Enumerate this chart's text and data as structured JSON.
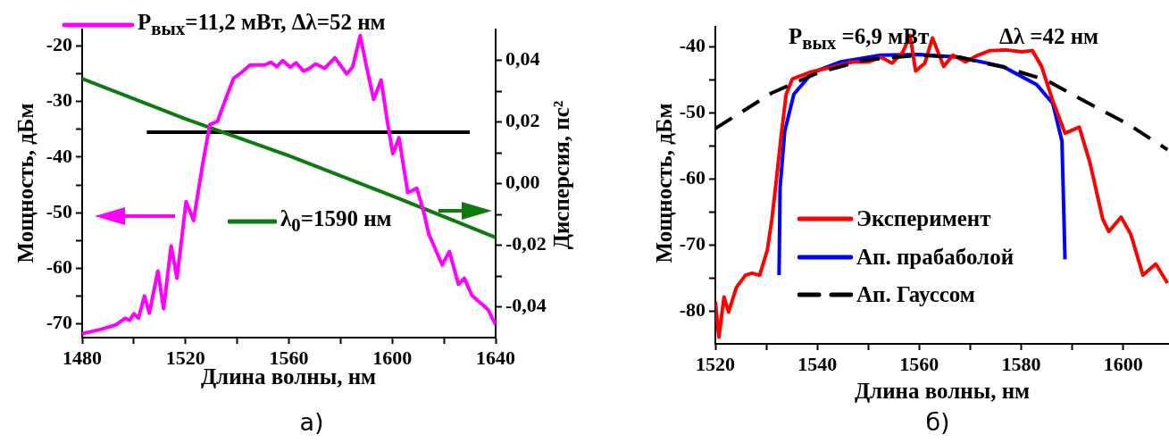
{
  "chart_data": [
    {
      "type": "line",
      "xlabel": "Длина волны, нм",
      "ylabel": "Мощность, дБм",
      "y2label": "Дисперсия, пс²",
      "xlim": [
        1480,
        1640
      ],
      "xticks": [
        1480,
        {
          "value": 1500,
          "label": null
        },
        1520,
        {
          "value": 1540,
          "label": null
        },
        1560,
        {
          "value": 1580,
          "label": null
        },
        1600,
        {
          "value": 1620,
          "label": null
        },
        1640
      ],
      "ylim": [
        -72.5,
        -17
      ],
      "yticks": [
        -70,
        {
          "value": -65,
          "label": null
        },
        -60,
        {
          "value": -55,
          "label": null
        },
        -50,
        {
          "value": -45,
          "label": null
        },
        -40,
        {
          "value": -35,
          "label": null
        },
        -30,
        {
          "value": -25,
          "label": null
        },
        -20
      ],
      "y2lim": [
        -0.05,
        0.05
      ],
      "y2ticks": [
        {
          "value": -0.04,
          "label": "-0,04"
        },
        {
          "value": -0.03,
          "label": null
        },
        {
          "value": -0.02,
          "label": "-0,02"
        },
        {
          "value": -0.01,
          "label": null
        },
        {
          "value": 0,
          "label": "0,00"
        },
        {
          "value": 0.01,
          "label": null
        },
        {
          "value": 0.02,
          "label": "0,02"
        },
        {
          "value": 0.03,
          "label": null
        },
        {
          "value": 0.04,
          "label": "0,04"
        }
      ],
      "legend": "top left",
      "grid": false,
      "series": [
        {
          "name": "P$_{вых}$=11,2 мВт, Δλ=52 нм",
          "color": "#ff00ff",
          "axis": "y",
          "x": [
            1480,
            1487.4,
            1493.1,
            1496.6,
            1498.3,
            1500,
            1501.8,
            1504.1,
            1506,
            1509.3,
            1511.5,
            1514.4,
            1516.7,
            1520.2,
            1523.1,
            1526.5,
            1529.4,
            1532.3,
            1535.7,
            1538.6,
            1541.5,
            1545,
            1550.7,
            1553,
            1555.3,
            1557.6,
            1560.5,
            1562.8,
            1565.7,
            1568,
            1570.3,
            1573.8,
            1577.8,
            1582.4,
            1584.7,
            1587.6,
            1589.9,
            1592.8,
            1595.7,
            1597.9,
            1600.2,
            1602.6,
            1606,
            1609.5,
            1612.3,
            1614.1,
            1619.3,
            1622.1,
            1625.6,
            1627.9,
            1630.8,
            1634.8,
            1637.1,
            1640
          ],
          "values": [
            -71.8,
            -71,
            -70.2,
            -69,
            -69.4,
            -68.2,
            -69,
            -65,
            -68.1,
            -60.5,
            -67.3,
            -56,
            -61.8,
            -48,
            -51.4,
            -41.6,
            -34.1,
            -33.6,
            -29.3,
            -25.8,
            -24.8,
            -23.4,
            -23.4,
            -22.9,
            -23.7,
            -22.6,
            -23.8,
            -23,
            -24.5,
            -24,
            -23.2,
            -24,
            -22.1,
            -25,
            -23.7,
            -18.1,
            -23.4,
            -29.6,
            -26.1,
            -33,
            -39.4,
            -36.5,
            -46.4,
            -45.6,
            -50.1,
            -53.8,
            -59.4,
            -57,
            -62.9,
            -61.8,
            -64.9,
            -66.5,
            -67.5,
            -70.2
          ]
        },
        {
          "name": "λ$_{0}$=1590 нм",
          "color": "#0f7a0f",
          "axis": "y2",
          "x": [
            1480,
            1520,
            1560,
            1600,
            1640
          ],
          "values": [
            0.034,
            0.021,
            0.009,
            -0.004,
            -0.0175
          ]
        },
        {
          "color": "#000000",
          "axis": "y",
          "x": [
            1505,
            1630
          ],
          "values": [
            -35.5,
            -35.5
          ]
        }
      ],
      "annotations": [
        "а)"
      ]
    },
    {
      "type": "line",
      "xlabel": "Длина волны, нм",
      "ylabel": "Мощность, дБм",
      "xlim": [
        1520,
        1609
      ],
      "xticks": [
        1520,
        {
          "value": 1530,
          "label": null
        },
        1540,
        {
          "value": 1550,
          "label": null
        },
        1560,
        {
          "value": 1570,
          "label": null
        },
        1580,
        {
          "value": 1590,
          "label": null
        },
        1600
      ],
      "ylim": [
        -85,
        -37
      ],
      "yticks": [
        -80,
        {
          "value": -75,
          "label": null
        },
        -70,
        {
          "value": -65,
          "label": null
        },
        -60,
        {
          "value": -55,
          "label": null
        },
        -50,
        {
          "value": -45,
          "label": null
        },
        -40
      ],
      "legend": "bottom left",
      "grid": false,
      "series": [
        {
          "name": "Эксперимент",
          "color": "#ff0000",
          "x": [
            1520,
            1520.7,
            1521.7,
            1522.6,
            1524.1,
            1525.9,
            1527.2,
            1528.7,
            1530.2,
            1531.1,
            1532,
            1533,
            1533.9,
            1535.1,
            1538.5,
            1543.4,
            1547,
            1550.1,
            1552.5,
            1554.7,
            1556.8,
            1558.2,
            1559.3,
            1561.1,
            1562.6,
            1564.8,
            1566.6,
            1569.1,
            1571.5,
            1573.9,
            1577,
            1580.1,
            1582.2,
            1584,
            1586.2,
            1588.6,
            1591.4,
            1593.5,
            1596,
            1597.2,
            1599.6,
            1601.5,
            1603.9,
            1606.4,
            1608.7
          ],
          "values": [
            -78.6,
            -84,
            -77.9,
            -80.2,
            -76.5,
            -74.6,
            -74.3,
            -74.6,
            -70.8,
            -66.1,
            -60,
            -52.9,
            -47.2,
            -44.9,
            -43.9,
            -43,
            -42.3,
            -42.3,
            -41.6,
            -42.5,
            -40.8,
            -38.3,
            -43.7,
            -42.5,
            -38.7,
            -43,
            -41.3,
            -42.3,
            -41.3,
            -40.6,
            -40.5,
            -40.8,
            -40.6,
            -43,
            -48.2,
            -53.1,
            -52.2,
            -57.6,
            -66.1,
            -68,
            -65.8,
            -68.4,
            -74.6,
            -72.9,
            -75.8
          ]
        },
        {
          "name": "Ап. прабаболой",
          "color": "#0000ff",
          "x": [
            1532.5,
            1532.7,
            1533.6,
            1535.4,
            1539.1,
            1544.6,
            1552.5,
            1559.9,
            1567.8,
            1576.4,
            1583.1,
            1586.2,
            1588,
            1588.6
          ],
          "values": [
            -74.6,
            -61.4,
            -52.9,
            -47.2,
            -43.9,
            -42.3,
            -41.3,
            -41.2,
            -41.6,
            -43,
            -45.8,
            -48.6,
            -54.3,
            -72.2
          ]
        },
        {
          "name": "Ап. Гауссом",
          "color": "#000000",
          "line_style": "dashed",
          "x": [
            1520,
            1531.1,
            1540.3,
            1549.5,
            1559.9,
            1567.8,
            1577,
            1585,
            1592.3,
            1600.9,
            1608.7
          ],
          "values": [
            -52.4,
            -47,
            -43.9,
            -42,
            -41.3,
            -41.6,
            -43.2,
            -45.1,
            -48.2,
            -51.7,
            -55.6
          ]
        }
      ],
      "annotations": [
        "P$_{вых}$ =6,9 мВт",
        "Δλ =42 нм",
        "б)"
      ]
    }
  ]
}
